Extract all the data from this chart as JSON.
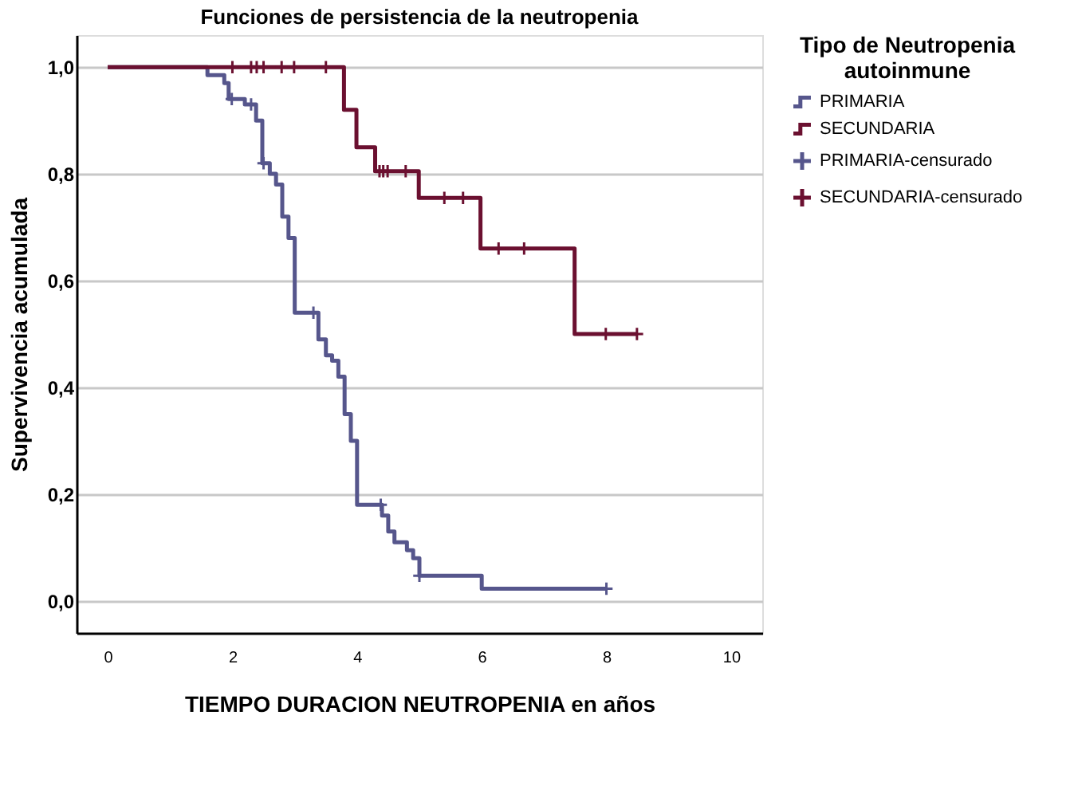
{
  "chart_data": {
    "type": "step",
    "title": "Funciones de persistencia de la neutropenia",
    "xlabel": "TIEMPO DURACION NEUTROPENIA en años",
    "ylabel": "Supervivencia acumulada",
    "legend_title": "Tipo de Neutropenia autoinmune",
    "legend": "right",
    "grid": "y",
    "xlim": [
      -0.5,
      10.5
    ],
    "ylim": [
      -0.06,
      1.06
    ],
    "xticks": [
      0,
      2,
      4,
      6,
      8,
      10
    ],
    "yticks": [
      {
        "value": 0,
        "label": "0,0"
      },
      {
        "value": 0.2,
        "label": "0,2"
      },
      {
        "value": 0.4,
        "label": "0,4"
      },
      {
        "value": 0.6,
        "label": "0,6"
      },
      {
        "value": 0.8,
        "label": "0,8"
      },
      {
        "value": 1.0,
        "label": "1,0"
      }
    ],
    "series": [
      {
        "name": "PRIMARIA",
        "color": "#56568c",
        "x": [
          0,
          1.6,
          1.87,
          1.94,
          2.2,
          2.38,
          2.48,
          2.6,
          2.7,
          2.8,
          2.9,
          3.0,
          3.38,
          3.5,
          3.6,
          3.7,
          3.8,
          3.9,
          4.0,
          4.4,
          4.5,
          4.6,
          4.8,
          4.9,
          5.0,
          6.0,
          8.0
        ],
        "values": [
          1.0,
          0.985,
          0.97,
          0.94,
          0.93,
          0.9,
          0.82,
          0.8,
          0.78,
          0.72,
          0.68,
          0.54,
          0.49,
          0.46,
          0.45,
          0.42,
          0.35,
          0.3,
          0.18,
          0.16,
          0.13,
          0.11,
          0.095,
          0.08,
          0.047,
          0.023,
          0.023
        ]
      },
      {
        "name": "SECUNDARIA",
        "color": "#6b1030",
        "x": [
          0,
          3.79,
          3.99,
          4.29,
          4.99,
          5.98,
          7.49,
          8.49
        ],
        "values": [
          1.0,
          0.92,
          0.85,
          0.805,
          0.755,
          0.66,
          0.5,
          0.5
        ]
      },
      {
        "name": "PRIMARIA-censurado",
        "type": "scatter",
        "marker": "cross",
        "color": "#56568c",
        "x": [
          1.99,
          2.3,
          2.5,
          3.3,
          4.38,
          5.0,
          8.0
        ],
        "values": [
          0.94,
          0.93,
          0.82,
          0.54,
          0.18,
          0.047,
          0.023
        ]
      },
      {
        "name": "SECUNDARIA-censurado",
        "type": "scatter",
        "marker": "cross",
        "color": "#6b1030",
        "x": [
          2.0,
          2.3,
          2.39,
          2.5,
          2.79,
          2.99,
          3.5,
          4.36,
          4.42,
          4.49,
          4.78,
          5.4,
          5.7,
          6.27,
          6.68,
          7.99,
          8.49
        ],
        "values": [
          1.0,
          1.0,
          1.0,
          1.0,
          1.0,
          1.0,
          1.0,
          0.805,
          0.805,
          0.805,
          0.805,
          0.755,
          0.755,
          0.66,
          0.66,
          0.5,
          0.5
        ]
      }
    ]
  }
}
